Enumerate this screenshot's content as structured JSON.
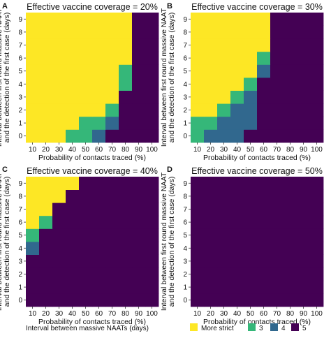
{
  "figure": {
    "legend_title": "Interval between massive NAATs (days)",
    "legend_items": [
      {
        "label": "More strict",
        "color": "#fde725"
      },
      {
        "label": "3",
        "color": "#35b779"
      },
      {
        "label": "4",
        "color": "#31688e"
      },
      {
        "label": "5",
        "color": "#440154"
      }
    ]
  },
  "chart_data": [
    {
      "type": "heatmap",
      "panel_letter": "A",
      "title": "Effective vaccine coverage = 20%",
      "xlabel": "Probability of contacts traced (%)",
      "ylabel": "Interval between first round massive NAAT\nand the detection of the first case (days)",
      "x": [
        10,
        20,
        30,
        40,
        50,
        60,
        70,
        80,
        90,
        100
      ],
      "y": [
        0,
        1,
        2,
        3,
        4,
        5,
        6,
        7,
        8,
        9
      ],
      "value_labels": [
        "More strict",
        "3",
        "4",
        "5"
      ],
      "grid": false,
      "values": [
        [
          "More strict",
          "More strict",
          "More strict",
          "3",
          "3",
          "4",
          "5",
          "5",
          "5",
          "5"
        ],
        [
          "More strict",
          "More strict",
          "More strict",
          "More strict",
          "3",
          "3",
          "4",
          "5",
          "5",
          "5"
        ],
        [
          "More strict",
          "More strict",
          "More strict",
          "More strict",
          "More strict",
          "More strict",
          "3",
          "5",
          "5",
          "5"
        ],
        [
          "More strict",
          "More strict",
          "More strict",
          "More strict",
          "More strict",
          "More strict",
          "More strict",
          "5",
          "5",
          "5"
        ],
        [
          "More strict",
          "More strict",
          "More strict",
          "More strict",
          "More strict",
          "More strict",
          "More strict",
          "3",
          "5",
          "5"
        ],
        [
          "More strict",
          "More strict",
          "More strict",
          "More strict",
          "More strict",
          "More strict",
          "More strict",
          "3",
          "5",
          "5"
        ],
        [
          "More strict",
          "More strict",
          "More strict",
          "More strict",
          "More strict",
          "More strict",
          "More strict",
          "More strict",
          "5",
          "5"
        ],
        [
          "More strict",
          "More strict",
          "More strict",
          "More strict",
          "More strict",
          "More strict",
          "More strict",
          "More strict",
          "5",
          "5"
        ],
        [
          "More strict",
          "More strict",
          "More strict",
          "More strict",
          "More strict",
          "More strict",
          "More strict",
          "More strict",
          "5",
          "5"
        ],
        [
          "More strict",
          "More strict",
          "More strict",
          "More strict",
          "More strict",
          "More strict",
          "More strict",
          "More strict",
          "5",
          "5"
        ]
      ]
    },
    {
      "type": "heatmap",
      "panel_letter": "B",
      "title": "Effective vaccine coverage = 30%",
      "xlabel": "Probability of contacts traced (%)",
      "ylabel": "Interval between first round massive NAAT\nand the detection of the first case (days)",
      "x": [
        10,
        20,
        30,
        40,
        50,
        60,
        70,
        80,
        90,
        100
      ],
      "y": [
        0,
        1,
        2,
        3,
        4,
        5,
        6,
        7,
        8,
        9
      ],
      "value_labels": [
        "More strict",
        "3",
        "4",
        "5"
      ],
      "grid": false,
      "values": [
        [
          "3",
          "4",
          "4",
          "4",
          "5",
          "5",
          "5",
          "5",
          "5",
          "5"
        ],
        [
          "3",
          "3",
          "4",
          "4",
          "4",
          "5",
          "5",
          "5",
          "5",
          "5"
        ],
        [
          "More strict",
          "More strict",
          "3",
          "4",
          "4",
          "5",
          "5",
          "5",
          "5",
          "5"
        ],
        [
          "More strict",
          "More strict",
          "More strict",
          "3",
          "4",
          "5",
          "5",
          "5",
          "5",
          "5"
        ],
        [
          "More strict",
          "More strict",
          "More strict",
          "More strict",
          "3",
          "5",
          "5",
          "5",
          "5",
          "5"
        ],
        [
          "More strict",
          "More strict",
          "More strict",
          "More strict",
          "More strict",
          "4",
          "5",
          "5",
          "5",
          "5"
        ],
        [
          "More strict",
          "More strict",
          "More strict",
          "More strict",
          "More strict",
          "3",
          "5",
          "5",
          "5",
          "5"
        ],
        [
          "More strict",
          "More strict",
          "More strict",
          "More strict",
          "More strict",
          "More strict",
          "5",
          "5",
          "5",
          "5"
        ],
        [
          "More strict",
          "More strict",
          "More strict",
          "More strict",
          "More strict",
          "More strict",
          "5",
          "5",
          "5",
          "5"
        ],
        [
          "More strict",
          "More strict",
          "More strict",
          "More strict",
          "More strict",
          "More strict",
          "5",
          "5",
          "5",
          "5"
        ]
      ]
    },
    {
      "type": "heatmap",
      "panel_letter": "C",
      "title": "Effective vaccine coverage = 40%",
      "xlabel": "Probability of contacts traced (%)",
      "ylabel": "Interval between first round massive NAAT\nand the detection of the first case (days)",
      "x": [
        10,
        20,
        30,
        40,
        50,
        60,
        70,
        80,
        90,
        100
      ],
      "y": [
        0,
        1,
        2,
        3,
        4,
        5,
        6,
        7,
        8,
        9
      ],
      "value_labels": [
        "More strict",
        "3",
        "4",
        "5"
      ],
      "grid": false,
      "values": [
        [
          "5",
          "5",
          "5",
          "5",
          "5",
          "5",
          "5",
          "5",
          "5",
          "5"
        ],
        [
          "5",
          "5",
          "5",
          "5",
          "5",
          "5",
          "5",
          "5",
          "5",
          "5"
        ],
        [
          "5",
          "5",
          "5",
          "5",
          "5",
          "5",
          "5",
          "5",
          "5",
          "5"
        ],
        [
          "5",
          "5",
          "5",
          "5",
          "5",
          "5",
          "5",
          "5",
          "5",
          "5"
        ],
        [
          "4",
          "5",
          "5",
          "5",
          "5",
          "5",
          "5",
          "5",
          "5",
          "5"
        ],
        [
          "3",
          "5",
          "5",
          "5",
          "5",
          "5",
          "5",
          "5",
          "5",
          "5"
        ],
        [
          "More strict",
          "3",
          "5",
          "5",
          "5",
          "5",
          "5",
          "5",
          "5",
          "5"
        ],
        [
          "More strict",
          "More strict",
          "5",
          "5",
          "5",
          "5",
          "5",
          "5",
          "5",
          "5"
        ],
        [
          "More strict",
          "More strict",
          "More strict",
          "5",
          "5",
          "5",
          "5",
          "5",
          "5",
          "5"
        ],
        [
          "More strict",
          "More strict",
          "More strict",
          "More strict",
          "5",
          "5",
          "5",
          "5",
          "5",
          "5"
        ]
      ]
    },
    {
      "type": "heatmap",
      "panel_letter": "D",
      "title": "Effective vaccine coverage = 50%",
      "xlabel": "Probability of contacts traced (%)",
      "ylabel": "Interval between first round massive NAAT\nand the detection of the first case (days)",
      "x": [
        10,
        20,
        30,
        40,
        50,
        60,
        70,
        80,
        90,
        100
      ],
      "y": [
        0,
        1,
        2,
        3,
        4,
        5,
        6,
        7,
        8,
        9
      ],
      "value_labels": [
        "More strict",
        "3",
        "4",
        "5"
      ],
      "grid": false,
      "values": [
        [
          "5",
          "5",
          "5",
          "5",
          "5",
          "5",
          "5",
          "5",
          "5",
          "5"
        ],
        [
          "5",
          "5",
          "5",
          "5",
          "5",
          "5",
          "5",
          "5",
          "5",
          "5"
        ],
        [
          "5",
          "5",
          "5",
          "5",
          "5",
          "5",
          "5",
          "5",
          "5",
          "5"
        ],
        [
          "5",
          "5",
          "5",
          "5",
          "5",
          "5",
          "5",
          "5",
          "5",
          "5"
        ],
        [
          "5",
          "5",
          "5",
          "5",
          "5",
          "5",
          "5",
          "5",
          "5",
          "5"
        ],
        [
          "5",
          "5",
          "5",
          "5",
          "5",
          "5",
          "5",
          "5",
          "5",
          "5"
        ],
        [
          "5",
          "5",
          "5",
          "5",
          "5",
          "5",
          "5",
          "5",
          "5",
          "5"
        ],
        [
          "5",
          "5",
          "5",
          "5",
          "5",
          "5",
          "5",
          "5",
          "5",
          "5"
        ],
        [
          "5",
          "5",
          "5",
          "5",
          "5",
          "5",
          "5",
          "5",
          "5",
          "5"
        ],
        [
          "5",
          "5",
          "5",
          "5",
          "5",
          "5",
          "5",
          "5",
          "5",
          "5"
        ]
      ]
    }
  ]
}
